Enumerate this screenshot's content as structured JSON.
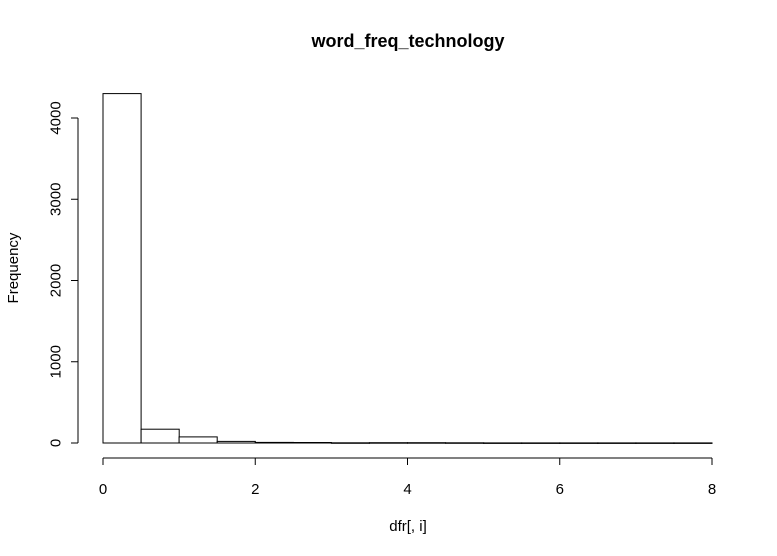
{
  "chart_data": {
    "type": "bar",
    "title": "word_freq_technology",
    "xlabel": "dfr[, i]",
    "ylabel": "Frequency",
    "xlim": [
      0,
      8
    ],
    "ylim": [
      0,
      4300
    ],
    "x_ticks": [
      0,
      2,
      4,
      6,
      8
    ],
    "y_ticks": [
      0,
      1000,
      2000,
      3000,
      4000
    ],
    "bin_width": 0.5,
    "bins": [
      {
        "start": 0.0,
        "end": 0.5,
        "value": 4300
      },
      {
        "start": 0.5,
        "end": 1.0,
        "value": 170
      },
      {
        "start": 1.0,
        "end": 1.5,
        "value": 75
      },
      {
        "start": 1.5,
        "end": 2.0,
        "value": 20
      },
      {
        "start": 2.0,
        "end": 2.5,
        "value": 8
      },
      {
        "start": 2.5,
        "end": 3.0,
        "value": 6
      },
      {
        "start": 3.0,
        "end": 3.5,
        "value": 2
      },
      {
        "start": 3.5,
        "end": 4.0,
        "value": 4
      },
      {
        "start": 4.0,
        "end": 4.5,
        "value": 4
      },
      {
        "start": 4.5,
        "end": 5.0,
        "value": 3
      },
      {
        "start": 5.0,
        "end": 5.5,
        "value": 1
      },
      {
        "start": 5.5,
        "end": 6.0,
        "value": 1
      },
      {
        "start": 6.0,
        "end": 6.5,
        "value": 1
      },
      {
        "start": 6.5,
        "end": 7.0,
        "value": 1
      },
      {
        "start": 7.0,
        "end": 7.5,
        "value": 1
      },
      {
        "start": 7.5,
        "end": 8.0,
        "value": 1
      }
    ]
  }
}
